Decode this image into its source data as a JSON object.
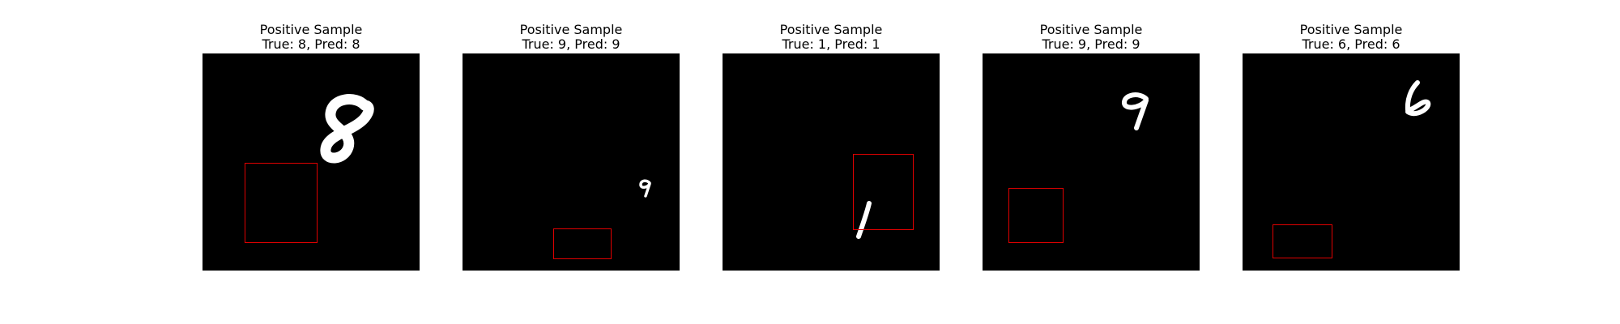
{
  "panels": [
    {
      "heading": "Positive Sample",
      "label": "True: 8, Pred: 8",
      "digit": "8",
      "box_color": "#e00000"
    },
    {
      "heading": "Positive Sample",
      "label": "True: 9, Pred: 9",
      "digit": "9",
      "box_color": "#e00000"
    },
    {
      "heading": "Positive Sample",
      "label": "True: 1, Pred: 1",
      "digit": "1",
      "box_color": "#e00000"
    },
    {
      "heading": "Positive Sample",
      "label": "True: 9, Pred: 9",
      "digit": "9",
      "box_color": "#e00000"
    },
    {
      "heading": "Positive Sample",
      "label": "True: 6, Pred: 6",
      "digit": "6",
      "box_color": "#e00000"
    }
  ]
}
